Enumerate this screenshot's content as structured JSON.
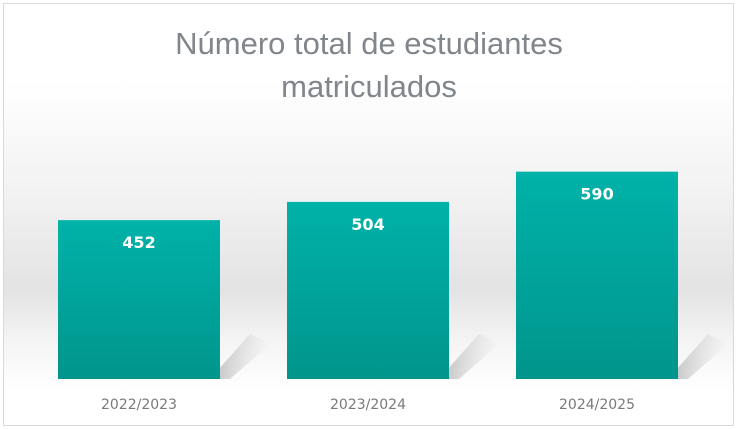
{
  "chart_data": {
    "type": "bar",
    "title_lines": [
      "Número total de estudiantes",
      "matriculados"
    ],
    "categories": [
      "2022/2023",
      "2023/2024",
      "2024/2025"
    ],
    "values": [
      452,
      504,
      590
    ],
    "data_labels": [
      "452",
      "504",
      "590"
    ],
    "xlabel": "",
    "ylabel": "",
    "ylim": [
      0,
      700
    ],
    "grid": false,
    "legend": "none",
    "bar_color_top": "#00b2a8",
    "bar_color_bottom": "#00958c"
  }
}
